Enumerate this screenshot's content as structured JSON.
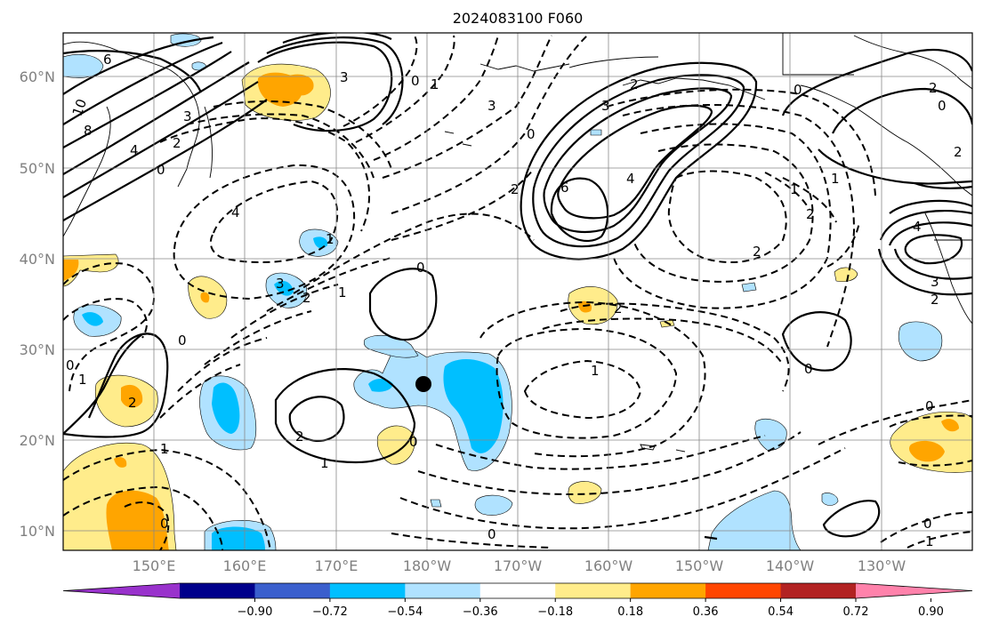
{
  "title": "2024083100 F060",
  "map": {
    "lat_labels": [
      "60°N",
      "50°N",
      "40°N",
      "30°N",
      "20°N",
      "10°N"
    ],
    "lon_labels": [
      "150°E",
      "160°E",
      "170°E",
      "180°W",
      "170°W",
      "160°W",
      "150°W",
      "140°W",
      "130°W"
    ],
    "lat_range": [
      8,
      65
    ],
    "lon_range": [
      140,
      240
    ],
    "grid": true
  },
  "colorbar": {
    "tick_labels": [
      "−0.90",
      "−0.72",
      "−0.54",
      "−0.36",
      "−0.18",
      "0.18",
      "0.36",
      "0.54",
      "0.72",
      "0.90"
    ],
    "colors": [
      "#9932cc",
      "#00008b",
      "#3a5fcd",
      "#00bfff",
      "#b0e2ff",
      "#ffffff",
      "#ffec8b",
      "#ffa500",
      "#ff4500",
      "#b22222",
      "#ff82ab"
    ],
    "extend": "both"
  },
  "contour_labels": [
    "6",
    "10",
    "8",
    "4",
    "3",
    "0",
    "2",
    "4",
    "3",
    "0",
    "1",
    "3",
    "0",
    "2",
    "6",
    "4",
    "1",
    "2",
    "2",
    "0",
    "2",
    "4",
    "3",
    "2",
    "0",
    "2",
    "1",
    "0",
    "0",
    "1",
    "2",
    "2",
    "1",
    "0",
    "1",
    "0",
    "0",
    "0",
    "1"
  ],
  "marker": "storm-center-dot"
}
